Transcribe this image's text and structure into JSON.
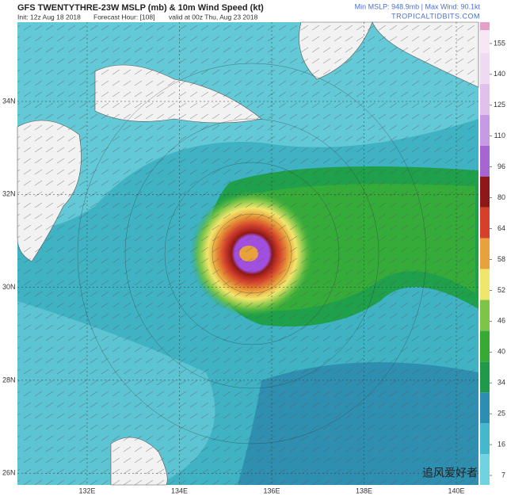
{
  "header": {
    "title": "GFS TWENTYTHRE-23W MSLP (mb) & 10m Wind Speed (kt)",
    "init": "Init: 12z Aug 18 2018",
    "forecast_hour": "Forecast Hour: [108]",
    "valid": "valid at 00z Thu, Aug 23 2018",
    "stats": "Min MSLP: 948.9mb | Max Wind: 90.1kt",
    "source": "TROPICALTIDBITS.COM"
  },
  "map": {
    "lat_labels": [
      "34N",
      "32N",
      "30N",
      "28N",
      "26N"
    ],
    "lon_labels": [
      "132E",
      "134E",
      "136E",
      "138E",
      "140E"
    ]
  },
  "colorbar": {
    "ticks": [
      7,
      16,
      25,
      34,
      40,
      46,
      52,
      58,
      64,
      80,
      96,
      110,
      125,
      140,
      155
    ],
    "colors": [
      "#6fd3e0",
      "#45b9cc",
      "#2c8fb2",
      "#1e9a48",
      "#35ab36",
      "#7cc548",
      "#f1e66c",
      "#e9a23b",
      "#d6402a",
      "#8e1717",
      "#a566d4",
      "#c89ae4",
      "#e1c0ee",
      "#f0d9f2",
      "#f7e6f4"
    ]
  },
  "watermark": "追风爱好者"
}
